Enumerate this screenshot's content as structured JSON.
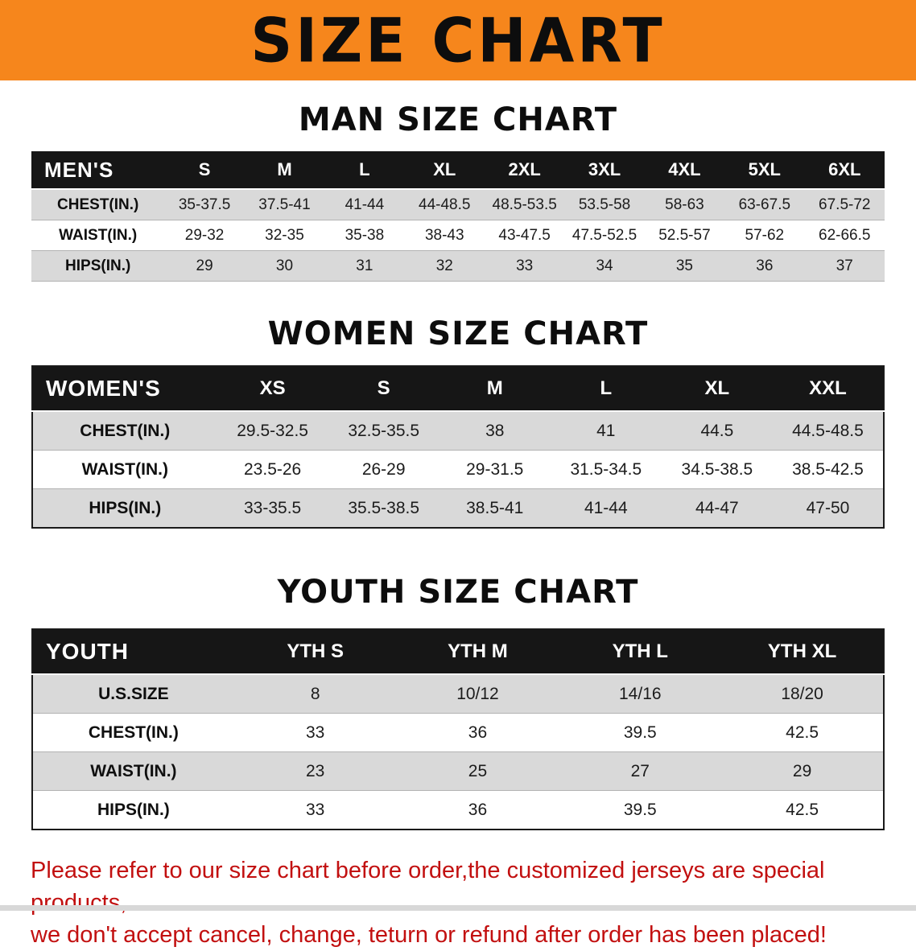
{
  "banner": {
    "title": "SIZE CHART"
  },
  "colors": {
    "banner_bg": "#f6861c",
    "table_header_bg": "#161616",
    "stripe_gray": "#d9d9d9",
    "disclaimer_red": "#c21010"
  },
  "sections": [
    {
      "heading": "MAN SIZE CHART",
      "table": {
        "header": [
          "MEN'S",
          "S",
          "M",
          "L",
          "XL",
          "2XL",
          "3XL",
          "4XL",
          "5XL",
          "6XL"
        ],
        "rows": [
          [
            "CHEST(IN.)",
            "35-37.5",
            "37.5-41",
            "41-44",
            "44-48.5",
            "48.5-53.5",
            "53.5-58",
            "58-63",
            "63-67.5",
            "67.5-72"
          ],
          [
            "WAIST(IN.)",
            "29-32",
            "32-35",
            "35-38",
            "38-43",
            "43-47.5",
            "47.5-52.5",
            "52.5-57",
            "57-62",
            "62-66.5"
          ],
          [
            "HIPS(IN.)",
            "29",
            "30",
            "31",
            "32",
            "33",
            "34",
            "35",
            "36",
            "37"
          ]
        ]
      }
    },
    {
      "heading": "WOMEN SIZE CHART",
      "table": {
        "header": [
          "WOMEN'S",
          "XS",
          "S",
          "M",
          "L",
          "XL",
          "XXL"
        ],
        "rows": [
          [
            "CHEST(IN.)",
            "29.5-32.5",
            "32.5-35.5",
            "38",
            "41",
            "44.5",
            "44.5-48.5"
          ],
          [
            "WAIST(IN.)",
            "23.5-26",
            "26-29",
            "29-31.5",
            "31.5-34.5",
            "34.5-38.5",
            "38.5-42.5"
          ],
          [
            "HIPS(IN.)",
            "33-35.5",
            "35.5-38.5",
            "38.5-41",
            "41-44",
            "44-47",
            "47-50"
          ]
        ]
      }
    },
    {
      "heading": "YOUTH SIZE CHART",
      "table": {
        "header": [
          "YOUTH",
          "YTH S",
          "YTH M",
          "YTH L",
          "YTH XL"
        ],
        "rows": [
          [
            "U.S.SIZE",
            "8",
            "10/12",
            "14/16",
            "18/20"
          ],
          [
            "CHEST(IN.)",
            "33",
            "36",
            "39.5",
            "42.5"
          ],
          [
            "WAIST(IN.)",
            "23",
            "25",
            "27",
            "29"
          ],
          [
            "HIPS(IN.)",
            "33",
            "36",
            "39.5",
            "42.5"
          ]
        ]
      }
    }
  ],
  "disclaimer": {
    "lines": [
      "Please refer to our size chart before order,the customized jerseys are special products,",
      "we don't accept cancel, change, teturn or refund after order has been placed!"
    ]
  }
}
